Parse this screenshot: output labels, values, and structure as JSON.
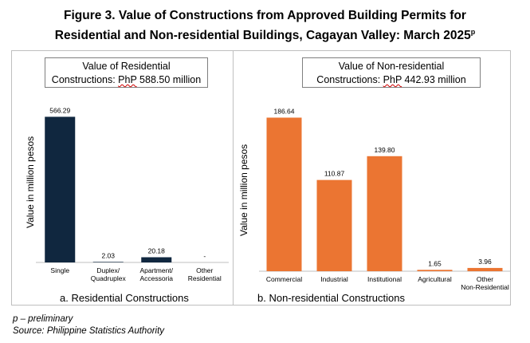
{
  "figure": {
    "title_line1": "Figure 3. Value of Constructions from Approved Building Permits for",
    "title_line2": "Residential and Non-residential Buildings, Cagayan Valley: March 2025",
    "title_sup": "p"
  },
  "footnotes": {
    "preliminary": "p – preliminary",
    "source": "Source: Philippine Statistics Authority"
  },
  "chart_data": [
    {
      "type": "bar",
      "summary_line1": "Value of Residential",
      "summary_line2_prefix": "Constructions: ",
      "summary_currency": "PhP",
      "summary_line2_suffix": " 588.50 million",
      "caption": "a.    Residential Constructions",
      "ylabel": "Value in million pesos",
      "categories": [
        "Single",
        "Duplex/\nQuadruplex",
        "Apartment/\nAccessoria",
        "Other\nResidential"
      ],
      "values": [
        566.29,
        2.03,
        20.18,
        0
      ],
      "value_labels": [
        "566.29",
        "2.03",
        "20.18",
        "-"
      ],
      "color": "#10273f",
      "ylim": [
        0,
        580
      ],
      "grid": false,
      "legend": "none"
    },
    {
      "type": "bar",
      "summary_line1": "Value of Non-residential",
      "summary_line2_prefix": "Constructions: ",
      "summary_currency": "PhP",
      "summary_line2_suffix": " 442.93 million",
      "caption": "b.    Non-residential Constructions",
      "ylabel": "Value in million pesos",
      "categories": [
        "Commercial",
        "Industrial",
        "Institutional",
        "Agricultural",
        "Other\nNon-Residential"
      ],
      "values": [
        186.64,
        110.87,
        139.8,
        1.65,
        3.96
      ],
      "value_labels": [
        "186.64",
        "110.87",
        "139.80",
        "1.65",
        "3.96"
      ],
      "color": "#eb7532",
      "ylim": [
        0,
        190
      ],
      "grid": false,
      "legend": "none"
    }
  ]
}
